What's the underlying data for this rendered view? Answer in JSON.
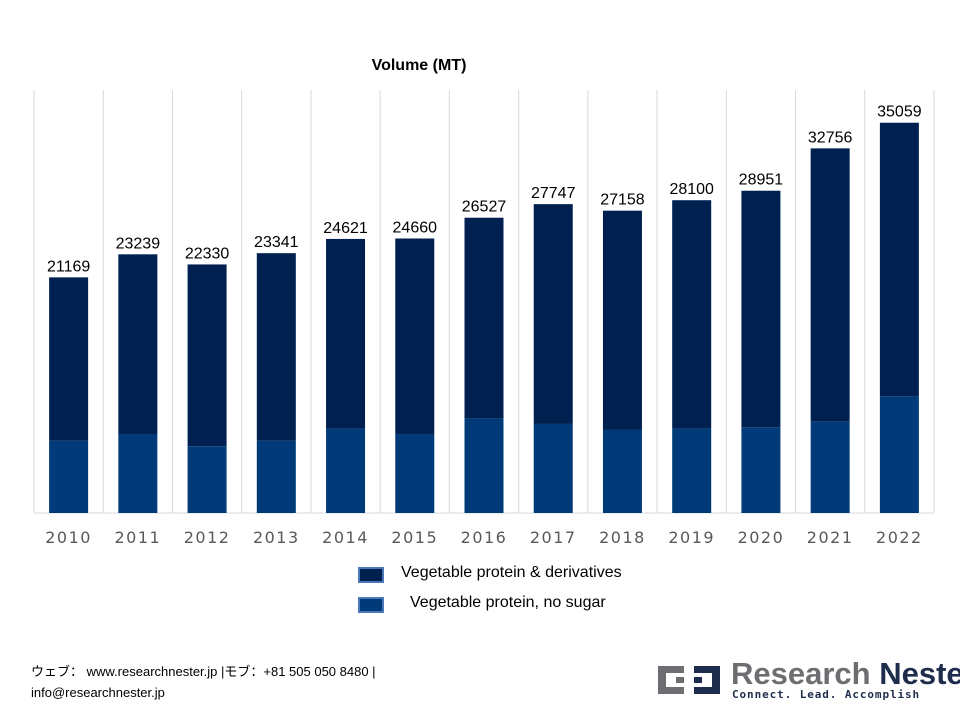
{
  "chart_data": {
    "type": "bar",
    "stacked": true,
    "title": "Volume (MT)",
    "xlabel": "",
    "ylabel": "",
    "ylim": [
      0,
      38000
    ],
    "grid": "vertical",
    "categories": [
      "2010",
      "2011",
      "2012",
      "2013",
      "2014",
      "2015",
      "2016",
      "2017",
      "2018",
      "2019",
      "2020",
      "2021",
      "2022"
    ],
    "totals": [
      21169,
      23239,
      22330,
      23341,
      24621,
      24660,
      26527,
      27747,
      27158,
      28100,
      28951,
      32756,
      35059
    ],
    "total_labels": [
      "21169",
      "23239",
      "22330",
      "23341",
      "24621",
      "24660",
      "26527",
      "27747",
      "27158",
      "28100",
      "28951",
      "32756",
      "35059"
    ],
    "series": [
      {
        "name": "Vegetable protein, no sugar",
        "color": "#003a78",
        "values": [
          6500,
          7100,
          6000,
          6500,
          7600,
          7100,
          8500,
          8000,
          7500,
          7600,
          7700,
          8200,
          10500
        ]
      },
      {
        "name": "Vegetable protein & derivatives",
        "color": "#002050",
        "values": [
          14669,
          16139,
          16330,
          16841,
          17021,
          17560,
          18027,
          19747,
          19658,
          20500,
          21251,
          24556,
          24559
        ]
      }
    ],
    "legend": "bottom-center"
  },
  "legend": {
    "items": [
      {
        "label": "Vegetable protein & derivatives",
        "color": "#002050"
      },
      {
        "label": "Vegetable protein, no sugar",
        "color": "#003a78"
      }
    ]
  },
  "footer": {
    "contact_line1": "ウェブ： www.researchnester.jp |モブ：+81 505 050 8480 |",
    "contact_line2": "info@researchnester.jp"
  },
  "logo": {
    "name_part1": "Research ",
    "name_part2": "Nester",
    "tagline": "Connect. Lead. Accomplish"
  }
}
